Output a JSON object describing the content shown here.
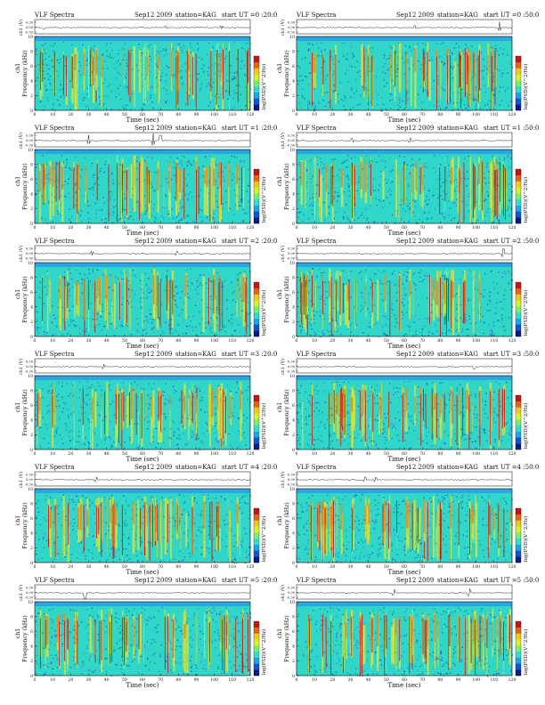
{
  "page": {
    "figure_title": "VLF Spectra",
    "date": "Sep12 2009",
    "station": "station=KAG",
    "start_prefix": "start  UT  ="
  },
  "colors": {
    "colorbar": [
      "#0a1a8c",
      "#0a55d8",
      "#14a8e6",
      "#2ee0c8",
      "#78f06a",
      "#d8f030",
      "#f0c818",
      "#e86414",
      "#c81414"
    ],
    "spectrogram_bg": "#30d6c8",
    "speckle": "#1a6ad6",
    "burst_yellow": "#d8e23a",
    "burst_orange": "#e58a1c",
    "burst_red": "#c41c14",
    "header_band": "#2ba6e0",
    "trace": "#222222"
  },
  "chart_data": [
    {
      "type": "heatmap",
      "panel": "0:20",
      "start_ut": "0 :20:0",
      "seed": 11,
      "density": 0.62,
      "spikes": [
        [
          5,
          0.06
        ],
        [
          73,
          0.04
        ],
        [
          104,
          0.05
        ]
      ],
      "xlabel": "Time (sec)",
      "ylabel": "Frequency (kHz)",
      "trace_label": "ch1 (V)",
      "channel_label": "ch1",
      "colorbar_label": "log(PSD)(V^2/Hz)",
      "xlim": [
        0,
        120
      ],
      "ylim": [
        0,
        10
      ],
      "trace_ylim": [
        -0.3,
        0.3
      ],
      "xticks": [
        0,
        10,
        20,
        30,
        40,
        50,
        60,
        70,
        80,
        90,
        100,
        110,
        120
      ],
      "yticks": [
        0,
        2,
        4,
        6,
        8,
        10
      ],
      "trace_yticks": [
        "0.30",
        "0.00",
        "-0.30"
      ]
    },
    {
      "type": "heatmap",
      "panel": "0:50",
      "start_ut": "0 :50:0",
      "seed": 23,
      "density": 0.45,
      "spikes": [
        [
          66,
          0.05
        ],
        [
          113,
          0.12
        ]
      ],
      "xlabel": "Time (sec)",
      "ylabel": "Frequency (kHz)",
      "trace_label": "ch1 (V)",
      "channel_label": "ch1",
      "colorbar_label": "log(PSD)(V^2/Hz)",
      "xlim": [
        0,
        120
      ],
      "ylim": [
        0,
        10
      ],
      "trace_ylim": [
        -0.3,
        0.3
      ],
      "xticks": [
        0,
        10,
        20,
        30,
        40,
        50,
        60,
        70,
        80,
        90,
        100,
        110,
        120
      ],
      "yticks": [
        0,
        2,
        4,
        6,
        8,
        10
      ],
      "trace_yticks": [
        "0.30",
        "0.00",
        "-0.30"
      ]
    },
    {
      "type": "heatmap",
      "panel": "1:20",
      "start_ut": "1 :20:0",
      "seed": 37,
      "density": 0.78,
      "spikes": [
        [
          30,
          0.12
        ],
        [
          66,
          0.16
        ],
        [
          70,
          0.12
        ]
      ],
      "xlabel": "Time (sec)",
      "ylabel": "Frequency (kHz)",
      "trace_label": "ch1 (V)",
      "channel_label": "ch1",
      "colorbar_label": "log(PSD)(V^2/Hz)",
      "xlim": [
        0,
        120
      ],
      "ylim": [
        0,
        10
      ],
      "trace_ylim": [
        -0.3,
        0.3
      ],
      "xticks": [
        0,
        10,
        20,
        30,
        40,
        50,
        60,
        70,
        80,
        90,
        100,
        110,
        120
      ],
      "yticks": [
        0,
        2,
        4,
        6,
        8,
        10
      ],
      "trace_yticks": [
        "0.30",
        "0.00",
        "-0.30"
      ]
    },
    {
      "type": "heatmap",
      "panel": "1:50",
      "start_ut": "1 :50:0",
      "seed": 41,
      "density": 0.8,
      "spikes": [
        [
          31,
          0.05
        ],
        [
          63,
          0.07
        ]
      ],
      "xlabel": "Time (sec)",
      "ylabel": "Frequency (kHz)",
      "trace_label": "ch1 (V)",
      "channel_label": "ch1",
      "colorbar_label": "log(PSD)(V^2/Hz)",
      "xlim": [
        0,
        120
      ],
      "ylim": [
        0,
        10
      ],
      "trace_ylim": [
        -0.3,
        0.3
      ],
      "xticks": [
        0,
        10,
        20,
        30,
        40,
        50,
        60,
        70,
        80,
        90,
        100,
        110,
        120
      ],
      "yticks": [
        0,
        2,
        4,
        6,
        8,
        10
      ],
      "trace_yticks": [
        "0.30",
        "0.00",
        "-0.30"
      ]
    },
    {
      "type": "heatmap",
      "panel": "2:20",
      "start_ut": "2 :20:0",
      "seed": 53,
      "density": 0.55,
      "spikes": [
        [
          32,
          0.05
        ],
        [
          79,
          0.05
        ]
      ],
      "xlabel": "Time (sec)",
      "ylabel": "Frequency (kHz)",
      "trace_label": "ch1 (V)",
      "channel_label": "ch1",
      "colorbar_label": "log(PSD)(V^2/Hz)",
      "xlim": [
        0,
        120
      ],
      "ylim": [
        0,
        10
      ],
      "trace_ylim": [
        -0.3,
        0.3
      ],
      "xticks": [
        0,
        10,
        20,
        30,
        40,
        50,
        60,
        70,
        80,
        90,
        100,
        110,
        120
      ],
      "yticks": [
        0,
        2,
        4,
        6,
        8,
        10
      ],
      "trace_yticks": [
        "0.30",
        "0.00",
        "-0.30"
      ]
    },
    {
      "type": "heatmap",
      "panel": "2:50",
      "start_ut": "2 :50:0",
      "seed": 67,
      "density": 0.5,
      "spikes": [
        [
          115,
          0.12
        ]
      ],
      "xlabel": "Time (sec)",
      "ylabel": "Frequency (kHz)",
      "trace_label": "ch1 (V)",
      "channel_label": "ch1",
      "colorbar_label": "log(PSD)(V^2/Hz)",
      "xlim": [
        0,
        120
      ],
      "ylim": [
        0,
        10
      ],
      "trace_ylim": [
        -0.3,
        0.3
      ],
      "xticks": [
        0,
        10,
        20,
        30,
        40,
        50,
        60,
        70,
        80,
        90,
        100,
        110,
        120
      ],
      "yticks": [
        0,
        2,
        4,
        6,
        8,
        10
      ],
      "trace_yticks": [
        "0.30",
        "0.00",
        "-0.30"
      ]
    },
    {
      "type": "heatmap",
      "panel": "3:20",
      "start_ut": "3 :20:0",
      "seed": 71,
      "density": 0.7,
      "spikes": [
        [
          38,
          0.06
        ]
      ],
      "xlabel": "Time (sec)",
      "ylabel": "Frequency (kHz)",
      "trace_label": "ch1 (V)",
      "channel_label": "ch1",
      "colorbar_label": "log(PSD)(V^2/Hz)",
      "xlim": [
        0,
        120
      ],
      "ylim": [
        0,
        10
      ],
      "trace_ylim": [
        -0.3,
        0.3
      ],
      "xticks": [
        0,
        10,
        20,
        30,
        40,
        50,
        60,
        70,
        80,
        90,
        100,
        110,
        120
      ],
      "yticks": [
        0,
        2,
        4,
        6,
        8,
        10
      ],
      "trace_yticks": [
        "0.30",
        "0.00",
        "-0.30"
      ]
    },
    {
      "type": "heatmap",
      "panel": "3:50",
      "start_ut": "3 :50:0",
      "seed": 83,
      "density": 0.74,
      "spikes": [
        [
          99,
          0.08
        ]
      ],
      "xlabel": "Time (sec)",
      "ylabel": "Frequency (kHz)",
      "trace_label": "ch1 (V)",
      "channel_label": "ch1",
      "colorbar_label": "log(PSD)(V^2/Hz)",
      "xlim": [
        0,
        120
      ],
      "ylim": [
        0,
        10
      ],
      "trace_ylim": [
        -0.3,
        0.3
      ],
      "xticks": [
        0,
        10,
        20,
        30,
        40,
        50,
        60,
        70,
        80,
        90,
        100,
        110,
        120
      ],
      "yticks": [
        0,
        2,
        4,
        6,
        8,
        10
      ],
      "trace_yticks": [
        "0.30",
        "0.00",
        "-0.30"
      ]
    },
    {
      "type": "heatmap",
      "panel": "4:20",
      "start_ut": "4 :20:0",
      "seed": 97,
      "density": 0.85,
      "spikes": [
        [
          34,
          0.06
        ]
      ],
      "xlabel": "Time (sec)",
      "ylabel": "Frequency (kHz)",
      "trace_label": "ch1 (V)",
      "channel_label": "ch1",
      "colorbar_label": "log(PSD)(V^2/Hz)",
      "xlim": [
        0,
        120
      ],
      "ylim": [
        0,
        10
      ],
      "trace_ylim": [
        -0.3,
        0.3
      ],
      "xticks": [
        0,
        10,
        20,
        30,
        40,
        50,
        60,
        70,
        80,
        90,
        100,
        110,
        120
      ],
      "yticks": [
        0,
        2,
        4,
        6,
        8,
        10
      ],
      "trace_yticks": [
        "0.30",
        "0.00",
        "-0.30"
      ]
    },
    {
      "type": "heatmap",
      "panel": "4:50",
      "start_ut": "4 :50:0",
      "seed": 101,
      "density": 0.82,
      "spikes": [
        [
          38,
          0.07
        ],
        [
          44,
          0.06
        ]
      ],
      "xlabel": "Time (sec)",
      "ylabel": "Frequency (kHz)",
      "trace_label": "ch1 (V)",
      "channel_label": "ch1",
      "colorbar_label": "log(PSD)(V^2/Hz)",
      "xlim": [
        0,
        120
      ],
      "ylim": [
        0,
        10
      ],
      "trace_ylim": [
        -0.3,
        0.3
      ],
      "xticks": [
        0,
        10,
        20,
        30,
        40,
        50,
        60,
        70,
        80,
        90,
        100,
        110,
        120
      ],
      "yticks": [
        0,
        2,
        4,
        6,
        8,
        10
      ],
      "trace_yticks": [
        "0.30",
        "0.00",
        "-0.30"
      ]
    },
    {
      "type": "heatmap",
      "panel": "5:20",
      "start_ut": "5 :20:0",
      "seed": 113,
      "density": 0.76,
      "spikes": [
        [
          28,
          0.22
        ]
      ],
      "xlabel": "Time (sec)",
      "ylabel": "Frequency (kHz)",
      "trace_label": "ch1 (V)",
      "channel_label": "ch1",
      "colorbar_label": "log(PSD)(V^2/Hz)",
      "xlim": [
        0,
        120
      ],
      "ylim": [
        0,
        10
      ],
      "trace_ylim": [
        -0.3,
        0.3
      ],
      "xticks": [
        0,
        10,
        20,
        30,
        40,
        50,
        60,
        70,
        80,
        90,
        100,
        110,
        120
      ],
      "yticks": [
        0,
        2,
        4,
        6,
        8,
        10
      ],
      "trace_yticks": [
        "0.30",
        "0.00",
        "-0.30"
      ]
    },
    {
      "type": "heatmap",
      "panel": "5:50",
      "start_ut": "5 :50:0",
      "seed": 127,
      "density": 0.78,
      "spikes": [
        [
          54,
          0.08
        ],
        [
          96,
          0.1
        ]
      ],
      "xlabel": "Time (sec)",
      "ylabel": "Frequency (kHz)",
      "trace_label": "ch1 (V)",
      "channel_label": "ch1",
      "colorbar_label": "log(PSD)(V^2/Hz)",
      "xlim": [
        0,
        120
      ],
      "ylim": [
        0,
        10
      ],
      "trace_ylim": [
        -0.3,
        0.3
      ],
      "xticks": [
        0,
        10,
        20,
        30,
        40,
        50,
        60,
        70,
        80,
        90,
        100,
        110,
        120
      ],
      "yticks": [
        0,
        2,
        4,
        6,
        8,
        10
      ],
      "trace_yticks": [
        "0.30",
        "0.00",
        "-0.30"
      ]
    }
  ]
}
